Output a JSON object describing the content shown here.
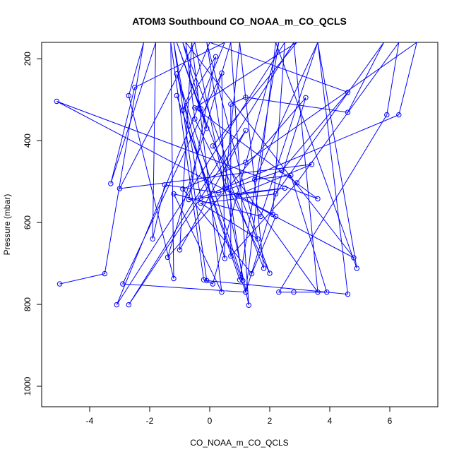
{
  "chart_data": {
    "type": "line",
    "title": "ATOM3 Southbound CO_NOAA_m_CO_QCLS",
    "xlabel": "CO_NOAA_m_CO_QCLS",
    "ylabel": "Pressure (mbar)",
    "xlim": [
      -5.6,
      7.6
    ],
    "ylim": [
      1050,
      160
    ],
    "y_reversed": true,
    "xticks": [
      -4,
      -2,
      0,
      2,
      4,
      6
    ],
    "yticks": [
      200,
      400,
      600,
      800,
      1000
    ],
    "grid": false,
    "marker": "open-circle",
    "series": [
      {
        "color": "#0000ff",
        "points": [
          [
            -5.0,
            750
          ],
          [
            -3.5,
            725
          ],
          [
            -2.2,
            160
          ],
          [
            -2.7,
            290
          ],
          [
            -1.2,
            737
          ],
          [
            -1.3,
            160
          ],
          [
            -0.2,
            740
          ],
          [
            0.1,
            750
          ],
          [
            2.3,
            160
          ],
          [
            1.0,
            740
          ],
          [
            -1.1,
            290
          ],
          [
            1.2,
            770
          ],
          [
            2.2,
            160
          ],
          [
            4.9,
            712
          ],
          [
            3.6,
            160
          ],
          [
            1.7,
            585
          ],
          [
            -1.2,
            530
          ],
          [
            0.4,
            770
          ],
          [
            -0.6,
            160
          ],
          [
            -1.0,
            667
          ],
          [
            1.2,
            375
          ],
          [
            -2.7,
            801
          ],
          [
            2.8,
            160
          ],
          [
            3.6,
            770
          ],
          [
            0.1,
            413
          ],
          [
            2.9,
            160
          ],
          [
            -0.5,
            320
          ],
          [
            3.6,
            542
          ],
          [
            -5.1,
            304
          ],
          [
            4.8,
            686
          ],
          [
            -0.8,
            160
          ],
          [
            -0.5,
            347
          ],
          [
            2.0,
            724
          ],
          [
            -0.9,
            160
          ],
          [
            -0.1,
            370
          ],
          [
            -1.1,
            160
          ],
          [
            -0.3,
            322
          ],
          [
            1.8,
            712
          ],
          [
            1.0,
            160
          ],
          [
            0.5,
            516
          ],
          [
            2.1,
            580
          ],
          [
            2.5,
            160
          ],
          [
            -3.1,
            801
          ],
          [
            0.5,
            160
          ],
          [
            -2.5,
            270
          ],
          [
            -3.3,
            505
          ],
          [
            -1.8,
            160
          ],
          [
            -1.9,
            640
          ],
          [
            -1.5,
            508
          ],
          [
            0.3,
            527
          ],
          [
            2.4,
            473
          ],
          [
            4.6,
            282
          ],
          [
            0.0,
            160
          ],
          [
            -0.9,
            326
          ],
          [
            0.2,
            195
          ],
          [
            -0.7,
            544
          ],
          [
            2.5,
            516
          ],
          [
            0.9,
            533
          ],
          [
            3.4,
            458
          ],
          [
            -3.0,
            517
          ],
          [
            -0.5,
            160
          ],
          [
            1.3,
            802
          ],
          [
            0.7,
            160
          ],
          [
            -1.4,
            685
          ],
          [
            3.2,
            295
          ],
          [
            1.2,
            770
          ],
          [
            -2.9,
            750
          ],
          [
            0.4,
            235
          ],
          [
            0.5,
            688
          ],
          [
            -1.1,
            237
          ],
          [
            1.1,
            742
          ],
          [
            -0.1,
            160
          ],
          [
            1.6,
            640
          ],
          [
            -0.3,
            553
          ],
          [
            2.2,
            530
          ],
          [
            5.8,
            160
          ],
          [
            4.6,
            331
          ],
          [
            1.2,
            294
          ],
          [
            0.7,
            311
          ],
          [
            0.7,
            682
          ],
          [
            2.9,
            503
          ],
          [
            6.3,
            160
          ],
          [
            5.9,
            337
          ],
          [
            2.3,
            770
          ],
          [
            2.8,
            770
          ],
          [
            3.9,
            770
          ],
          [
            2.7,
            485
          ],
          [
            1.5,
            495
          ],
          [
            3.6,
            160
          ],
          [
            4.6,
            775
          ],
          [
            -0.1,
            742
          ],
          [
            -1.2,
            160
          ],
          [
            -0.3,
            540
          ],
          [
            6.3,
            337
          ],
          [
            6.9,
            160
          ],
          [
            1.2,
            453
          ],
          [
            -0.9,
            518
          ],
          [
            1.4,
            725
          ],
          [
            2.2,
            585
          ]
        ]
      }
    ]
  }
}
